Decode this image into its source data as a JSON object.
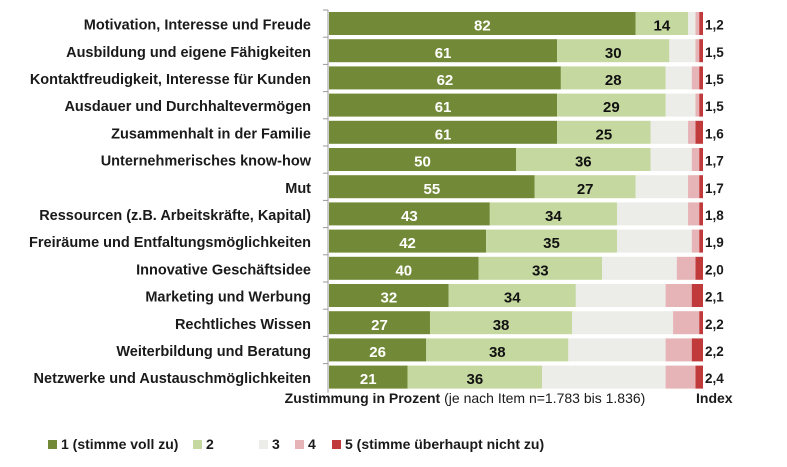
{
  "chart_data": {
    "type": "bar",
    "orientation": "horizontal",
    "stacked": true,
    "categories": [
      "Motivation, Interesse und Freude",
      "Ausbildung und eigene Fähigkeiten",
      "Kontaktfreudigkeit, Interesse für Kunden",
      "Ausdauer und Durchhaltevermögen",
      "Zusammenhalt in der Familie",
      "Unternehmerisches know-how",
      "Mut",
      "Ressourcen (z.B. Arbeitskräfte, Kapital)",
      "Freiräume und Entfaltungsmöglichkeiten",
      "Innovative Geschäftsidee",
      "Marketing und Werbung",
      "Rechtliches Wissen",
      "Weiterbildung und Beratung",
      "Netzwerke und Austauschmöglichkeiten"
    ],
    "series": [
      {
        "name": "1 (stimme voll zu)",
        "color": "#728a37",
        "label_color": "#ffffff",
        "labeled": true,
        "values": [
          82,
          61,
          62,
          61,
          61,
          50,
          55,
          43,
          42,
          40,
          32,
          27,
          26,
          21
        ]
      },
      {
        "name": "2",
        "color": "#c5d8a0",
        "label_color": "#111111",
        "labeled": true,
        "values": [
          14,
          30,
          28,
          29,
          25,
          36,
          27,
          34,
          35,
          33,
          34,
          38,
          38,
          36
        ]
      },
      {
        "name": "3",
        "color": "#ececE8",
        "labeled": false,
        "values": [
          2,
          7,
          7,
          8,
          10,
          11,
          14,
          19,
          20,
          20,
          24,
          27,
          26,
          33
        ]
      },
      {
        "name": "4",
        "color": "#e6b4b6",
        "labeled": false,
        "values": [
          1,
          1,
          2,
          1,
          2,
          2,
          3,
          3,
          2,
          5,
          7,
          7,
          7,
          8
        ]
      },
      {
        "name": "5 (stimme überhaupt nicht zu)",
        "color": "#c0393b",
        "labeled": false,
        "values": [
          1,
          1,
          1,
          1,
          2,
          1,
          1,
          1,
          1,
          2,
          3,
          1,
          3,
          2
        ]
      }
    ],
    "index": [
      "1,2",
      "1,5",
      "1,5",
      "1,5",
      "1,6",
      "1,7",
      "1,7",
      "1,8",
      "1,9",
      "2,0",
      "2,1",
      "2,2",
      "2,2",
      "2,4"
    ],
    "index_header": "Index",
    "xlabel_bold": "Zustimmung in Prozent",
    "xlabel_note": " (je nach Item n=1.783 bis 1.836)",
    "xlim": [
      0,
      100
    ],
    "grid": false,
    "legend_position": "bottom-left",
    "title": ""
  }
}
